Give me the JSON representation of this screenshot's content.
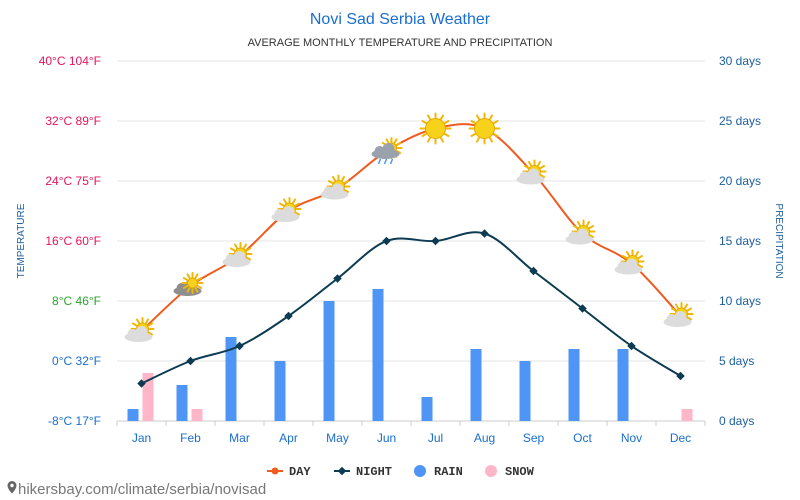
{
  "chart_data": {
    "type": "line",
    "title": "Novi Sad Serbia Weather",
    "subtitle": "AVERAGE MONTHLY TEMPERATURE AND PRECIPITATION",
    "ylabel_left": "TEMPERATURE",
    "ylabel_right": "PRECIPITATION",
    "categories": [
      "Jan",
      "Feb",
      "Mar",
      "Apr",
      "May",
      "Jun",
      "Jul",
      "Aug",
      "Sep",
      "Oct",
      "Nov",
      "Dec"
    ],
    "temp_ylim": [
      -8,
      40
    ],
    "temp_ticks": [
      {
        "value": 40,
        "label": "40°C 104°F",
        "color": "#e4145a"
      },
      {
        "value": 32,
        "label": "32°C 89°F",
        "color": "#e4145a"
      },
      {
        "value": 24,
        "label": "24°C 75°F",
        "color": "#e4145a"
      },
      {
        "value": 16,
        "label": "16°C 60°F",
        "color": "#e4145a"
      },
      {
        "value": 8,
        "label": "8°C 46°F",
        "color": "#2aa52a"
      },
      {
        "value": 0,
        "label": "0°C 32°F",
        "color": "#1a6ecf"
      },
      {
        "value": -8,
        "label": "-8°C 17°F",
        "color": "#1a6ecf"
      }
    ],
    "precip_ylim": [
      0,
      30
    ],
    "precip_ticks": [
      {
        "value": 30,
        "label": "30 days"
      },
      {
        "value": 25,
        "label": "25 days"
      },
      {
        "value": 20,
        "label": "20 days"
      },
      {
        "value": 15,
        "label": "15 days"
      },
      {
        "value": 10,
        "label": "10 days"
      },
      {
        "value": 5,
        "label": "5 days"
      },
      {
        "value": 0,
        "label": "0 days"
      }
    ],
    "series": [
      {
        "name": "DAY",
        "kind": "line",
        "color": "#f05a1e",
        "values": [
          4,
          10,
          14,
          20,
          23,
          28,
          31,
          31,
          25,
          17,
          13,
          6
        ]
      },
      {
        "name": "NIGHT",
        "kind": "line",
        "color": "#0c3b52",
        "values": [
          -3,
          0,
          2,
          6,
          11,
          16,
          16,
          17,
          12,
          7,
          2,
          -2
        ]
      },
      {
        "name": "RAIN",
        "kind": "bar",
        "color": "#4e95f5",
        "values": [
          1,
          3,
          7,
          5,
          10,
          11,
          2,
          6,
          5,
          6,
          6,
          0
        ]
      },
      {
        "name": "SNOW",
        "kind": "bar",
        "color": "#ffb6c8",
        "values": [
          4,
          1,
          0,
          0,
          0,
          0,
          0,
          0,
          0,
          0,
          0,
          1
        ]
      }
    ],
    "weather_icons": [
      "sun-cloud",
      "cloud-sun",
      "sun-cloud",
      "sun-cloud",
      "sun-cloud",
      "cloud-rain",
      "sun",
      "sun",
      "sun-cloud",
      "sun-cloud",
      "sun-cloud",
      "sun-cloud"
    ],
    "legend": [
      "DAY",
      "NIGHT",
      "RAIN",
      "SNOW"
    ],
    "legend_position": "bottom-center"
  },
  "footer": {
    "url": "hikersbay.com/climate/serbia/novisad"
  },
  "colors": {
    "title": "#1a6ecf",
    "axis_text": "#1a6ecf",
    "grid": "#e6e6e6",
    "right_axis": "#1d5fa0"
  }
}
